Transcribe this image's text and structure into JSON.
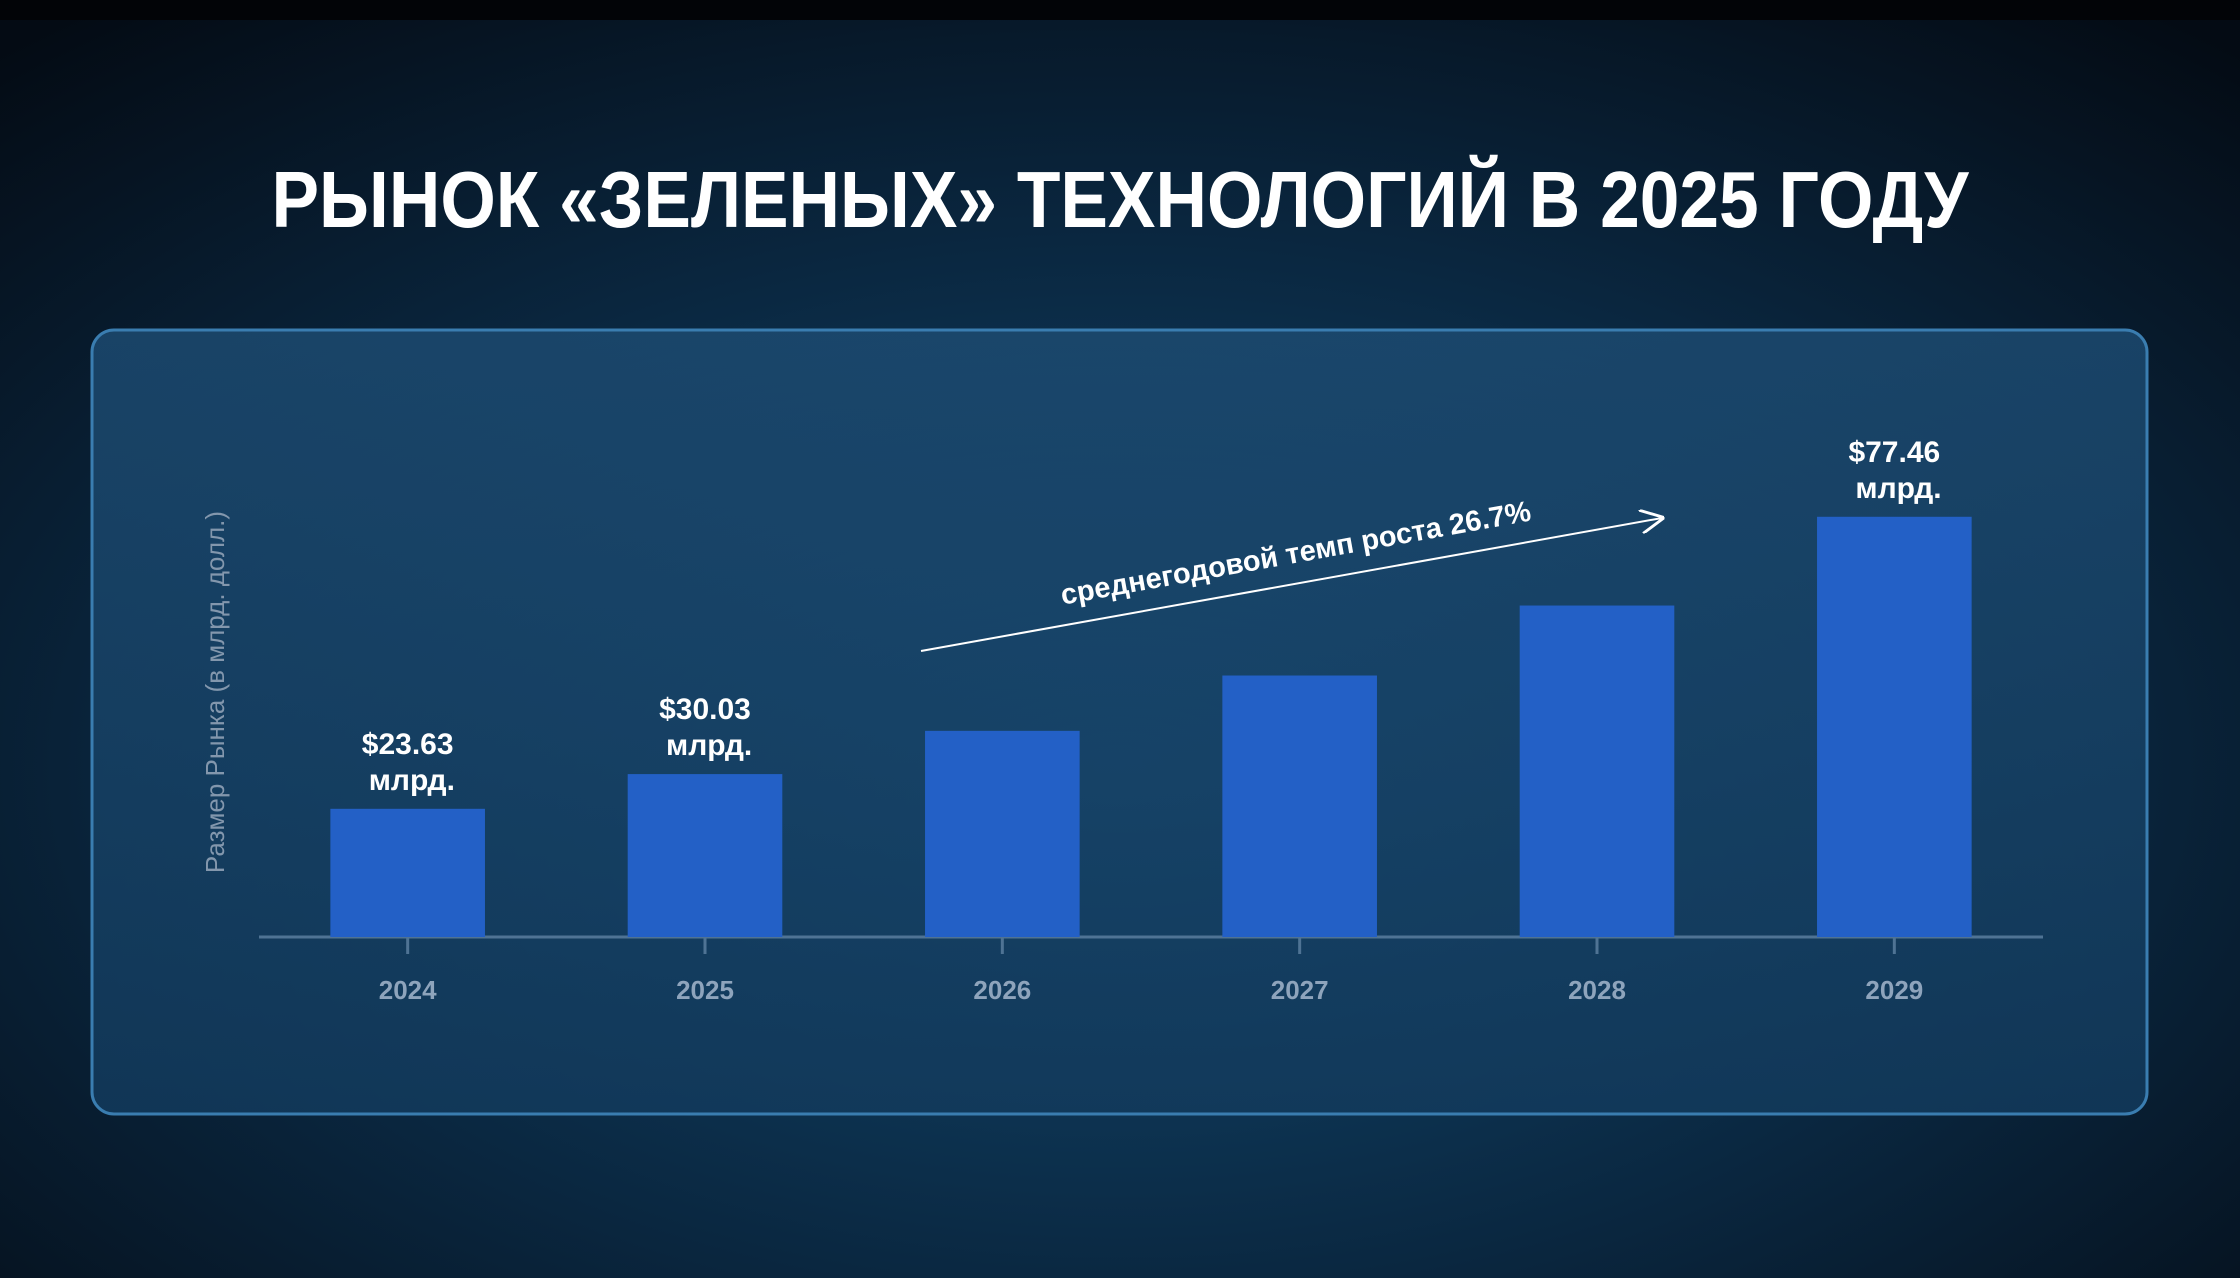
{
  "chart_data": {
    "type": "bar",
    "title": "РЫНОК «ЗЕЛЕНЫХ» ТЕХНОЛОГИЙ В 2025 ГОДУ",
    "y_label": "Размер Рынка (в млрд. долл.)",
    "annotation": "среднегодовой темп роста 26.7%",
    "categories": [
      "2024",
      "2025",
      "2026",
      "2027",
      "2028",
      "2029"
    ],
    "values": [
      23.63,
      30.03,
      38.0,
      48.2,
      61.1,
      77.46
    ],
    "value_labels": [
      "$23.63 млрд.",
      "$30.03 млрд.",
      null,
      null,
      null,
      "$77.46 млрд."
    ],
    "color": "#2360c6",
    "ylim": [
      0,
      80
    ]
  }
}
